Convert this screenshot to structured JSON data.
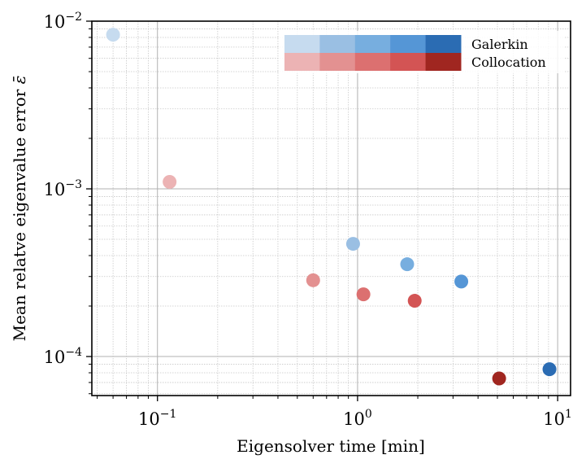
{
  "chart_data": {
    "type": "scatter",
    "title": "",
    "xlabel": "Eigensolver time [min]",
    "ylabel": "Mean relatve eigenvalue error ",
    "ylabel_symbol": "ε̄",
    "xscale": "log",
    "yscale": "log",
    "xlim": [
      0.047,
      11.6
    ],
    "ylim": [
      5.85e-05,
      0.01
    ],
    "grid": true,
    "x_ticks": [
      {
        "base": "10",
        "exp": "−1",
        "value": 0.1
      },
      {
        "base": "10",
        "exp": "0",
        "value": 1
      },
      {
        "base": "10",
        "exp": "1",
        "value": 10
      }
    ],
    "y_ticks": [
      {
        "base": "10",
        "exp": "−2",
        "value": 0.01
      },
      {
        "base": "10",
        "exp": "−3",
        "value": 0.001
      },
      {
        "base": "10",
        "exp": "−4",
        "value": 0.0001
      }
    ],
    "legend_position": "top-right",
    "series": [
      {
        "name": "Galerkin",
        "colors": [
          "#c6dbef",
          "#9abfe3",
          "#77aedf",
          "#5596d6",
          "#2b6cb3"
        ],
        "points": [
          {
            "x": 0.06,
            "y": 0.0083
          },
          {
            "x": 0.95,
            "y": 0.00047
          },
          {
            "x": 1.77,
            "y": 0.000355
          },
          {
            "x": 3.3,
            "y": 0.00028
          },
          {
            "x": 9.1,
            "y": 8.4e-05
          }
        ]
      },
      {
        "name": "Collocation",
        "colors": [
          "#ecb3b4",
          "#e39191",
          "#dc7070",
          "#d35454",
          "#a02620"
        ],
        "points": [
          {
            "x": 0.115,
            "y": 0.0011
          },
          {
            "x": 0.6,
            "y": 0.000285
          },
          {
            "x": 1.07,
            "y": 0.000235
          },
          {
            "x": 1.93,
            "y": 0.000215
          },
          {
            "x": 5.1,
            "y": 7.4e-05
          }
        ]
      }
    ]
  }
}
